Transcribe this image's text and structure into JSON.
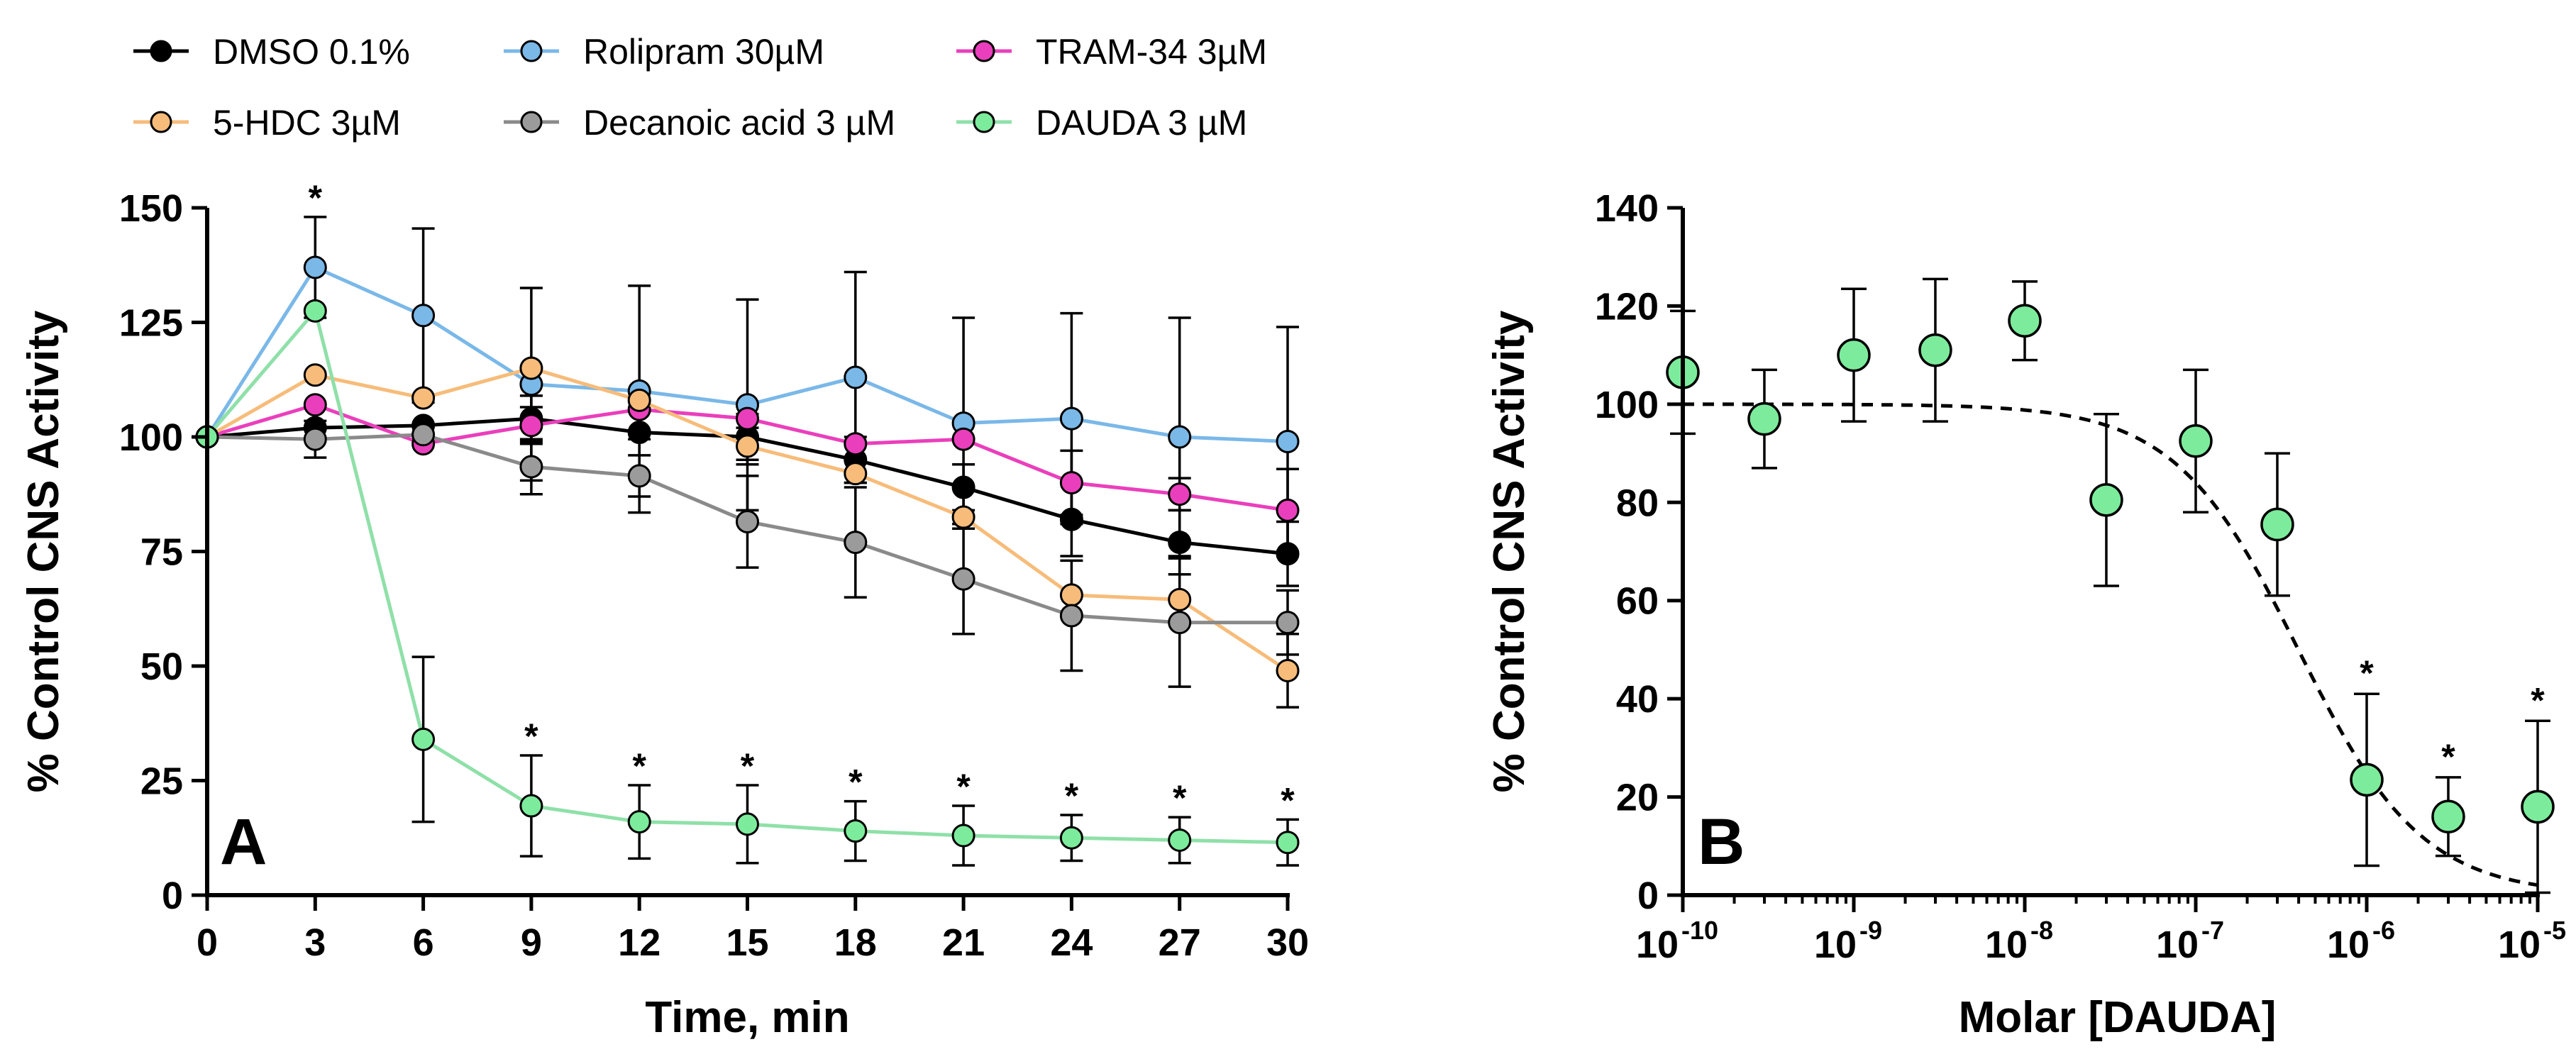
{
  "chart_data": [
    {
      "panel": "A",
      "type": "line",
      "xlabel": "Time, min",
      "ylabel": "% Control CNS Activity",
      "xlim": [
        0,
        30
      ],
      "ylim": [
        0,
        150
      ],
      "x_ticks": [
        0,
        3,
        6,
        9,
        12,
        15,
        18,
        21,
        24,
        27,
        30
      ],
      "y_ticks": [
        0,
        25,
        50,
        75,
        100,
        125,
        150
      ],
      "x": [
        0,
        3,
        6,
        9,
        12,
        15,
        18,
        21,
        24,
        27,
        30
      ],
      "legend": "top",
      "series": [
        {
          "name": "DMSO 0.1%",
          "color": "#000000",
          "fill": "#000000",
          "values": [
            100,
            102,
            102.5,
            104,
            101,
            100,
            95,
            89,
            82,
            77,
            74.5
          ],
          "errors": [
            0,
            0,
            0,
            5,
            5,
            5,
            5,
            5,
            8,
            7,
            7
          ]
        },
        {
          "name": "Rolipram 30µM",
          "color": "#7ab8e8",
          "fill": "#7ab8e8",
          "values": [
            100,
            137,
            126.5,
            111.5,
            110,
            107,
            113,
            103,
            104,
            100,
            99
          ],
          "errors": [
            0,
            11,
            19,
            21,
            23,
            23,
            23,
            23,
            23,
            26,
            25
          ]
        },
        {
          "name": "TRAM-34 3µM",
          "color": "#ea3fbc",
          "fill": "#ea3fbc",
          "values": [
            100,
            107,
            98.5,
            102.5,
            106,
            104,
            98.5,
            99.5,
            90,
            87.5,
            84
          ],
          "errors": [
            0,
            0,
            0,
            4,
            0,
            0,
            0,
            0,
            7,
            3.5,
            9
          ]
        },
        {
          "name": "5-HDC 3µM",
          "color": "#f7bc7a",
          "fill": "#f7bc7a",
          "values": [
            100,
            113.5,
            108.5,
            115,
            108,
            98,
            92,
            82.5,
            65.5,
            64.5,
            49
          ],
          "errors": [
            0,
            0,
            0,
            0,
            0,
            4,
            0,
            0,
            0,
            0,
            8
          ]
        },
        {
          "name": "Decanoic acid 3 µM",
          "color": "#8a8a8a",
          "fill": "#9b9b9b",
          "values": [
            100,
            99.5,
            100.5,
            93.5,
            91.5,
            81.5,
            77,
            69,
            61,
            59.5,
            59.5
          ],
          "errors": [
            0,
            4,
            0,
            6,
            8,
            10,
            12,
            12,
            12,
            14,
            7
          ]
        },
        {
          "name": "DAUDA 3 µM",
          "color": "#8fe0a8",
          "fill": "#7cec9c",
          "values": [
            100,
            127.5,
            34,
            19.5,
            16,
            15.5,
            14,
            13,
            12.5,
            12,
            11.5
          ],
          "errors": [
            0,
            0,
            18,
            11,
            8,
            8.5,
            6.5,
            6.5,
            5,
            5,
            5
          ]
        }
      ],
      "significance": [
        {
          "x": 3,
          "label": "*"
        },
        {
          "x": 9,
          "label": "*"
        },
        {
          "x": 12,
          "label": "*"
        },
        {
          "x": 15,
          "label": "*"
        },
        {
          "x": 18,
          "label": "*"
        },
        {
          "x": 21,
          "label": "*"
        },
        {
          "x": 24,
          "label": "*"
        },
        {
          "x": 27,
          "label": "*"
        },
        {
          "x": 30,
          "label": "*"
        }
      ]
    },
    {
      "panel": "B",
      "type": "scatter",
      "xlabel": "Molar [DAUDA]",
      "ylabel": "% Control CNS Activity",
      "xscale": "log",
      "xlim_log10": [
        -10,
        -5
      ],
      "ylim": [
        0,
        140
      ],
      "x_ticks_log10": [
        -10,
        -9,
        -8,
        -7,
        -6,
        -5
      ],
      "x_tick_base": "10",
      "y_ticks": [
        0,
        20,
        40,
        60,
        80,
        100,
        120,
        140
      ],
      "marker_fill": "#7cec9c",
      "fit": {
        "model": "sigmoid dose-response",
        "top": 100,
        "bottom": 0,
        "log_ic50": -6.4,
        "hill": 1.2,
        "style": "dashed"
      },
      "points": [
        {
          "log10_x": -10,
          "y": 106.5,
          "err": 12.5
        },
        {
          "log10_x": -9.523,
          "y": 97,
          "err": 10
        },
        {
          "log10_x": -9,
          "y": 110,
          "err": 13.5
        },
        {
          "log10_x": -8.523,
          "y": 111,
          "err": 14.5
        },
        {
          "log10_x": -8,
          "y": 117,
          "err": 8
        },
        {
          "log10_x": -7.523,
          "y": 80.5,
          "err": 17.5
        },
        {
          "log10_x": -7,
          "y": 92.5,
          "err": 14.5
        },
        {
          "log10_x": -6.523,
          "y": 75.5,
          "err": 14.5
        },
        {
          "log10_x": -6,
          "y": 23.5,
          "err": 17.5
        },
        {
          "log10_x": -5.523,
          "y": 16,
          "err": 8
        },
        {
          "log10_x": -5,
          "y": 18,
          "err": 17.5
        }
      ],
      "significance": [
        {
          "log10_x": -6,
          "label": "*"
        },
        {
          "log10_x": -5.523,
          "label": "*"
        },
        {
          "log10_x": -5,
          "label": "*"
        }
      ]
    }
  ]
}
